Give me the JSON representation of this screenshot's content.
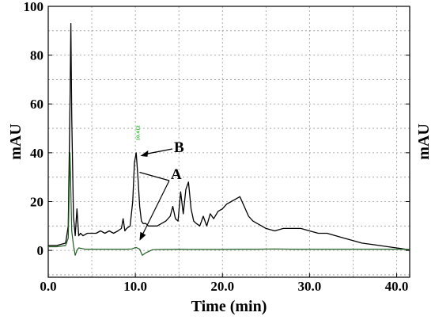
{
  "chart_data": {
    "type": "line",
    "xlabel": "Time (min)",
    "ylabel": "mAU",
    "ylabel_right": "mAU",
    "xlim": [
      0,
      41.5
    ],
    "ylim": [
      -11,
      100
    ],
    "x_ticks": [
      "0.0",
      "10.0",
      "20.0",
      "30.0",
      "40.0"
    ],
    "x_tick_values": [
      0,
      10,
      20,
      30,
      40
    ],
    "y_ticks": [
      "0",
      "20",
      "40",
      "60",
      "80",
      "100"
    ],
    "y_tick_values": [
      0,
      20,
      40,
      60,
      80,
      100
    ],
    "grid": true,
    "colors": {
      "series_a": "#000000",
      "series_b": "#1f5e1f",
      "peak_label": "#2fbf2f"
    },
    "annotations": [
      {
        "text": "B",
        "x": 10.3,
        "y": 40
      },
      {
        "text": "A",
        "x": 10.3,
        "y": 4
      }
    ],
    "peak_label": "10.412",
    "series": [
      {
        "x": [
          0,
          1,
          2,
          2.3,
          2.5,
          2.6,
          2.7,
          2.9,
          3.1,
          3.3,
          3.5,
          3.7,
          4.0,
          4.5,
          5.0,
          5.5,
          6.0,
          6.5,
          7.0,
          7.5,
          8.0,
          8.4,
          8.6,
          8.8,
          9.0,
          9.4,
          9.7,
          9.9,
          10.1,
          10.3,
          10.5,
          10.7,
          10.9,
          11.2,
          11.5,
          12.0,
          12.5,
          13.0,
          13.5,
          14.0,
          14.3,
          14.6,
          14.9,
          15.2,
          15.5,
          15.8,
          16.1,
          16.4,
          16.7,
          17.0,
          17.4,
          17.8,
          18.2,
          18.6,
          19.0,
          19.5,
          20.0,
          20.5,
          21.0,
          21.5,
          22.0,
          22.5,
          23.0,
          23.5,
          24.0,
          25.0,
          26.0,
          27.0,
          28.0,
          29.0,
          30.0,
          31.0,
          32.0,
          33.0,
          34.0,
          35.0,
          36.0,
          37.0,
          38.0,
          39.0,
          40.0,
          41.0,
          41.5
        ],
        "values": [
          2,
          2,
          3,
          10,
          60,
          93,
          55,
          14,
          6,
          17,
          6,
          7,
          6,
          7,
          7,
          7,
          8,
          7,
          8,
          7,
          8,
          9,
          13,
          8,
          9,
          10,
          20,
          36,
          40,
          30,
          18,
          12,
          11,
          11,
          10,
          10,
          10,
          11,
          12,
          14,
          18,
          13,
          12,
          24,
          15,
          25,
          28,
          17,
          12,
          11,
          10,
          14,
          10,
          15,
          13,
          16,
          17,
          19,
          20,
          21,
          22,
          18,
          14,
          12,
          11,
          9,
          8,
          9,
          9,
          9,
          8,
          7,
          7,
          6,
          5,
          4,
          3,
          2.5,
          2,
          1.5,
          1,
          0.5,
          0
        ]
      },
      {
        "x": [
          0,
          1,
          2,
          2.3,
          2.5,
          2.6,
          2.7,
          2.9,
          3.1,
          3.3,
          3.5,
          3.8,
          4.2,
          5,
          6,
          7,
          8,
          9,
          9.6,
          9.9,
          10.1,
          10.3,
          10.5,
          10.8,
          11.2,
          12,
          13,
          14,
          15,
          16,
          17,
          18,
          20,
          22,
          24,
          26,
          28,
          30,
          32,
          34,
          36,
          38,
          40,
          41.5
        ],
        "values": [
          1.5,
          1.5,
          2,
          5,
          40,
          24,
          8,
          2,
          -2,
          0,
          1,
          0.8,
          0.5,
          0.5,
          0.5,
          0.5,
          0.5,
          0.5,
          0.6,
          1,
          1.2,
          0.8,
          0.5,
          -2,
          -1,
          0.3,
          0.4,
          0.4,
          0.5,
          0.4,
          0.4,
          0.4,
          0.4,
          0.5,
          0.5,
          0.6,
          0.5,
          0.5,
          0.5,
          0.5,
          0.5,
          0.5,
          0.5,
          0.4
        ]
      }
    ]
  }
}
